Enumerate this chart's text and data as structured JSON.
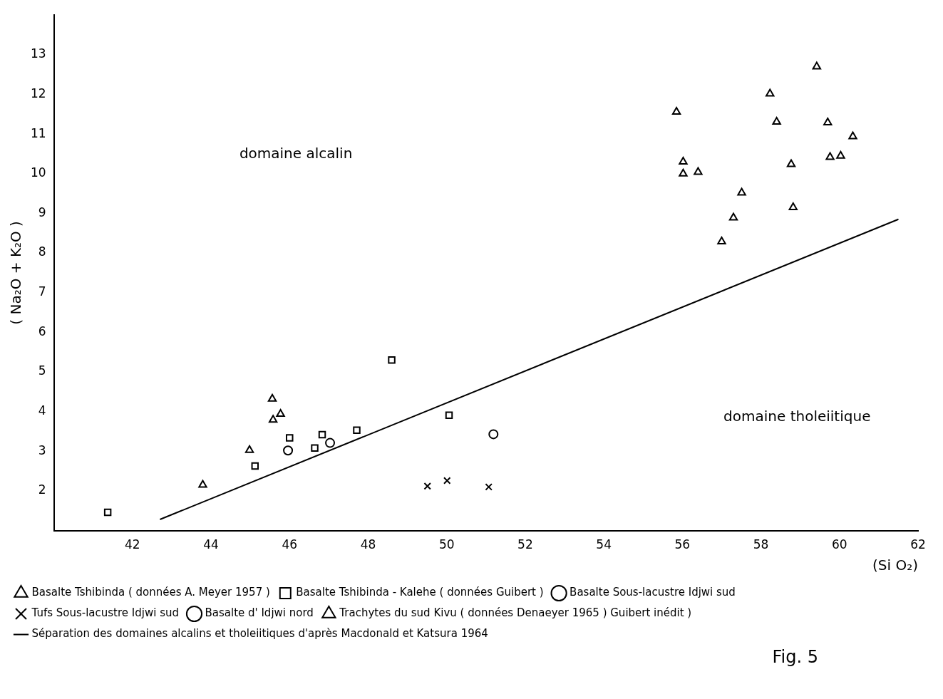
{
  "chart_data": {
    "type": "scatter",
    "xlabel": "(Si O₂)",
    "ylabel": "( Na₂O + K₂O )",
    "xlim": [
      40,
      62
    ],
    "xticks": [
      42,
      44,
      46,
      48,
      50,
      52,
      54,
      56,
      58,
      60,
      62
    ],
    "ylim": [
      1,
      14
    ],
    "yticks": [
      2,
      3,
      4,
      5,
      6,
      7,
      8,
      9,
      10,
      11,
      12,
      13
    ],
    "grid": false,
    "legend": "bottom",
    "series": [
      {
        "name": "Basalte Tshibinda ( données A. Meyer 1957 )",
        "color": "#000000",
        "marker": "triangle",
        "x": [
          43.79,
          44.98,
          45.56,
          45.58,
          45.77
        ],
        "values": [
          2.15,
          3.03,
          4.32,
          3.79,
          3.94
        ]
      },
      {
        "name": "Basalte Tshibinda - Kalehe ( données Guibert )",
        "color": "#000000",
        "marker": "square",
        "x": [
          41.37,
          45.12,
          46.0,
          46.64,
          46.83,
          47.71,
          48.6,
          50.06
        ],
        "values": [
          1.46,
          2.63,
          3.34,
          3.08,
          3.42,
          3.53,
          5.3,
          3.91
        ]
      },
      {
        "name": "Basalte Sous-lacustre Idjwi sud",
        "color": "#000000",
        "marker": "circle",
        "x": [
          47.03,
          51.19
        ],
        "values": [
          3.21,
          3.43
        ]
      },
      {
        "name": "Tufs Sous-lacustre Idjwi sud",
        "color": "#000000",
        "marker": "cross",
        "x": [
          49.51,
          50.01,
          51.07
        ],
        "values": [
          2.12,
          2.26,
          2.1
        ]
      },
      {
        "name": "Basalte d' Idjwi nord",
        "color": "#000000",
        "marker": "circle",
        "x": [
          45.96
        ],
        "values": [
          3.02
        ]
      },
      {
        "name": "Trachytes du sud Kivu ( données Denaeyer 1965 ) Guibert inédit )",
        "color": "#000000",
        "marker": "triangle",
        "x": [
          59.42,
          58.23,
          55.85,
          58.4,
          59.7,
          60.34,
          56.02,
          56.02,
          56.4,
          59.76,
          60.03,
          58.77,
          57.51,
          58.82,
          57.3,
          57.0
        ],
        "values": [
          12.7,
          12.02,
          11.56,
          11.31,
          11.29,
          10.94,
          10.3,
          10.0,
          10.04,
          10.42,
          10.45,
          10.24,
          9.52,
          9.15,
          8.89,
          8.29
        ]
      },
      {
        "name": "Séparation des domaines alcalins et tholeiitiques d'après Macdonald et Katsura 1964",
        "type": "line",
        "color": "#000000",
        "marker": "none",
        "x": [
          42.7,
          61.5
        ],
        "values": [
          1.28,
          8.85
        ]
      }
    ],
    "annotations": [
      "domaine alcalin",
      "domaine tholeiitique",
      "Fig. 5"
    ]
  }
}
